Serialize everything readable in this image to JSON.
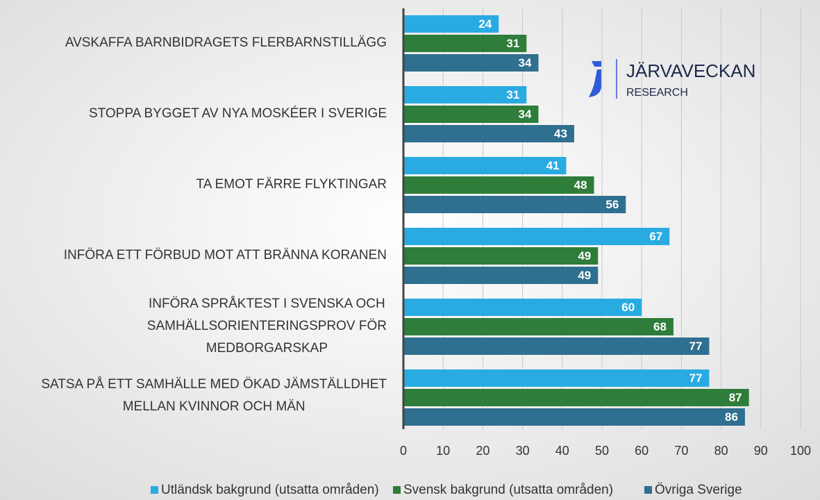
{
  "chart_data": {
    "type": "bar",
    "orientation": "horizontal",
    "categories": [
      "AVSKAFFA BARNBIDRAGETS FLERBARNSTILLÄGG",
      "STOPPA BYGGET AV NYA MOSKÉER I SVERIGE",
      "TA EMOT FÄRRE FLYKTINGAR",
      "INFÖRA ETT FÖRBUD MOT ATT BRÄNNA KORANEN",
      "INFÖRA SPRÅKTEST I SVENSKA OCH\nSAMHÄLLSORIENTERINGSPROV FÖR\nMEDBORGARSKAP",
      "SATSA PÅ ETT SAMHÄLLE MED ÖKAD JÄMSTÄLLDHET\nMELLAN KVINNOR OCH MÄN"
    ],
    "series": [
      {
        "name": "Utländsk bakgrund (utsatta områden)",
        "color": "#29abe2",
        "values": [
          24,
          31,
          41,
          67,
          60,
          77
        ]
      },
      {
        "name": "Svensk bakgrund (utsatta områden)",
        "color": "#2e7d3a",
        "values": [
          31,
          34,
          48,
          49,
          68,
          87
        ]
      },
      {
        "name": "Övriga Sverige",
        "color": "#2f6f8f",
        "values": [
          34,
          43,
          56,
          49,
          77,
          86
        ]
      }
    ],
    "xlim": [
      0,
      100
    ],
    "xticks": [
      0,
      10,
      20,
      30,
      40,
      50,
      60,
      70,
      80,
      90,
      100
    ],
    "grid": true,
    "legend": "bottom"
  },
  "logo": {
    "name": "JÄRVAVECKAN",
    "subtitle": "RESEARCH"
  }
}
